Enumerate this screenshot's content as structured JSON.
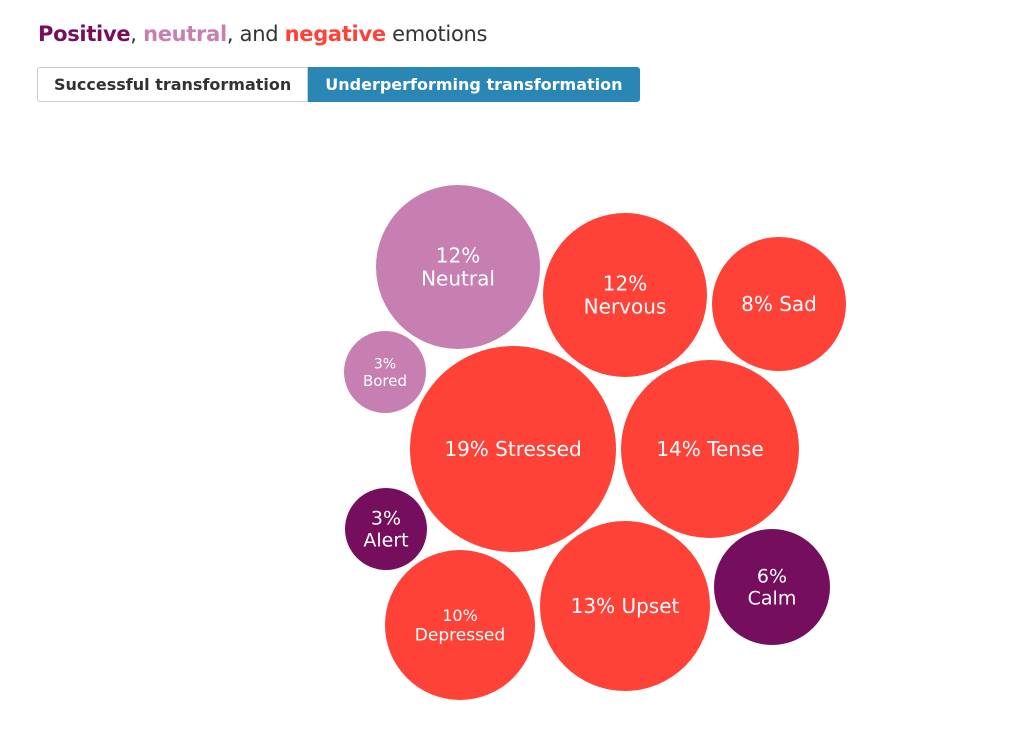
{
  "title": {
    "positive": "Positive",
    "sep1": ", ",
    "neutral": "neutral",
    "sep2": ", and ",
    "negative": "negative",
    "rest": " emotions"
  },
  "tabs": [
    {
      "label": "Successful transformation",
      "active": false
    },
    {
      "label": "Underperforming transformation",
      "active": true
    }
  ],
  "colors": {
    "positive": "#750e5d",
    "neutral": "#c67fb0",
    "negative": "#ff4238",
    "tab_active": "#2a86b4"
  },
  "chart_data": {
    "type": "bubble",
    "title": "Positive, neutral, and negative emotions",
    "unit": "%",
    "bubbles": [
      {
        "label": "Neutral",
        "value": 12,
        "category": "neutral",
        "text": [
          "12%",
          "Neutral"
        ]
      },
      {
        "label": "Nervous",
        "value": 12,
        "category": "negative",
        "text": [
          "12%",
          "Nervous"
        ]
      },
      {
        "label": "Sad",
        "value": 8,
        "category": "negative",
        "text": [
          "8% Sad"
        ]
      },
      {
        "label": "Bored",
        "value": 3,
        "category": "neutral",
        "text": [
          "3%",
          "Bored"
        ]
      },
      {
        "label": "Stressed",
        "value": 19,
        "category": "negative",
        "text": [
          "19% Stressed"
        ]
      },
      {
        "label": "Tense",
        "value": 14,
        "category": "negative",
        "text": [
          "14% Tense"
        ]
      },
      {
        "label": "Alert",
        "value": 3,
        "category": "positive",
        "text": [
          "3%",
          "Alert"
        ]
      },
      {
        "label": "Calm",
        "value": 6,
        "category": "positive",
        "text": [
          "6%",
          "Calm"
        ]
      },
      {
        "label": "Depressed",
        "value": 10,
        "category": "negative",
        "text": [
          "10%",
          "Depressed"
        ]
      },
      {
        "label": "Upset",
        "value": 13,
        "category": "negative",
        "text": [
          "13% Upset"
        ]
      }
    ]
  }
}
